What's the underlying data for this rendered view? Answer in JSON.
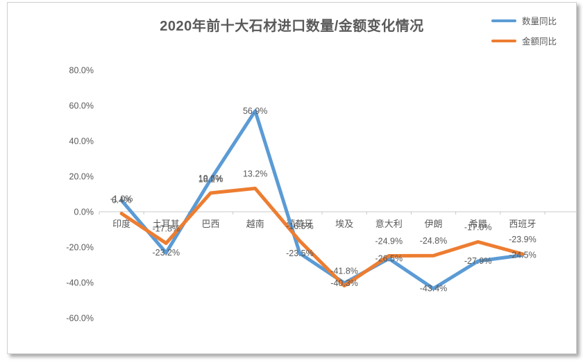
{
  "chart_data": {
    "type": "line",
    "title": "2020年前十大石材进口数量/金额变化情况",
    "categories": [
      "印度",
      "土耳其",
      "巴西",
      "越南",
      "葡萄牙",
      "埃及",
      "意大利",
      "伊朗",
      "希腊",
      "西班牙"
    ],
    "series": [
      {
        "name": "数量同比",
        "color": "#5B9BD5",
        "values": [
          6.4,
          -23.2,
          18.2,
          56.9,
          -23.5,
          -40.3,
          -26.5,
          -43.4,
          -27.9,
          -24.5
        ],
        "labels": [
          "6.4%",
          "-23.2%",
          "18.2%",
          "56.9%",
          "-23.5%",
          "-40.3%",
          "-26.5%",
          "-43.4%",
          "-27.9%",
          "-24.5%"
        ],
        "label_position": "center"
      },
      {
        "name": "金额同比",
        "color": "#ED7D31",
        "values": [
          -1.0,
          -17.8,
          10.6,
          13.2,
          -16.5,
          -41.8,
          -24.9,
          -24.8,
          -17.0,
          -23.9
        ],
        "labels": [
          "-1.0%",
          "-17.8%",
          "10.6%",
          "13.2%",
          "-16.5%",
          "-41.8%",
          "-24.9%",
          "-24.8%",
          "-17.0%",
          "-23.9%"
        ],
        "label_position": "above"
      }
    ],
    "y_axis": {
      "tick_labels": [
        "80.0%",
        "60.0%",
        "40.0%",
        "20.0%",
        "0.0%",
        "-20.0%",
        "-40.0%",
        "-60.0%"
      ],
      "tick_values": [
        80,
        60,
        40,
        20,
        0,
        -20,
        -40,
        -60
      ],
      "min": -60,
      "max": 80,
      "step": 20
    },
    "grid": false,
    "legend_position": "top-right"
  },
  "colors": {
    "text": "#595959",
    "axis_line": "#C9C9C9",
    "quantity_series": "#5B9BD5",
    "amount_series": "#ED7D31"
  }
}
